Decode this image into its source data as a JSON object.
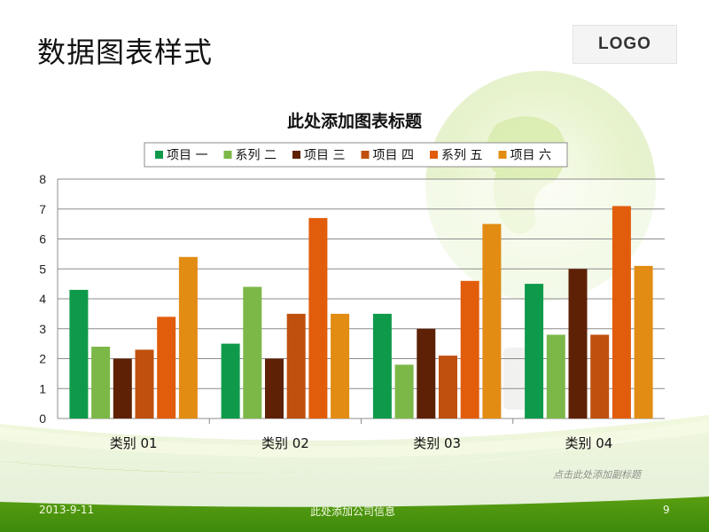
{
  "slide": {
    "title": "数据图表样式",
    "logo": "LOGO",
    "caption": "点击此处添加副标题",
    "footer": {
      "date": "2013-9-11",
      "company": "此处添加公司信息",
      "page": "9"
    }
  },
  "colors": {
    "accent_green": "#7ab51d",
    "dark_green": "#3d8a0c"
  },
  "chart_data": {
    "type": "bar",
    "title": "此处添加图表标题",
    "categories": [
      "类别 01",
      "类别 02",
      "类别 03",
      "类别 04"
    ],
    "series": [
      {
        "name": "项目 一",
        "color": "#0f9a4b",
        "values": [
          4.3,
          2.5,
          3.5,
          4.5
        ]
      },
      {
        "name": "系列 二",
        "color": "#7cb848",
        "values": [
          2.4,
          4.4,
          1.8,
          2.8
        ]
      },
      {
        "name": "项目 三",
        "color": "#5e2106",
        "values": [
          2.0,
          2.0,
          3.0,
          5.0
        ]
      },
      {
        "name": "项目 四",
        "color": "#c0500e",
        "values": [
          2.3,
          3.5,
          2.1,
          2.8
        ]
      },
      {
        "name": "系列 五",
        "color": "#e15d0c",
        "values": [
          3.4,
          6.7,
          4.6,
          7.1
        ]
      },
      {
        "name": "项目 六",
        "color": "#e28c14",
        "values": [
          5.4,
          3.5,
          6.5,
          5.1
        ]
      }
    ],
    "ylim": [
      0,
      8
    ],
    "yticks": [
      "0",
      "1",
      "2",
      "3",
      "4",
      "5",
      "6",
      "7",
      "8"
    ],
    "grid": true,
    "legend": "top"
  }
}
